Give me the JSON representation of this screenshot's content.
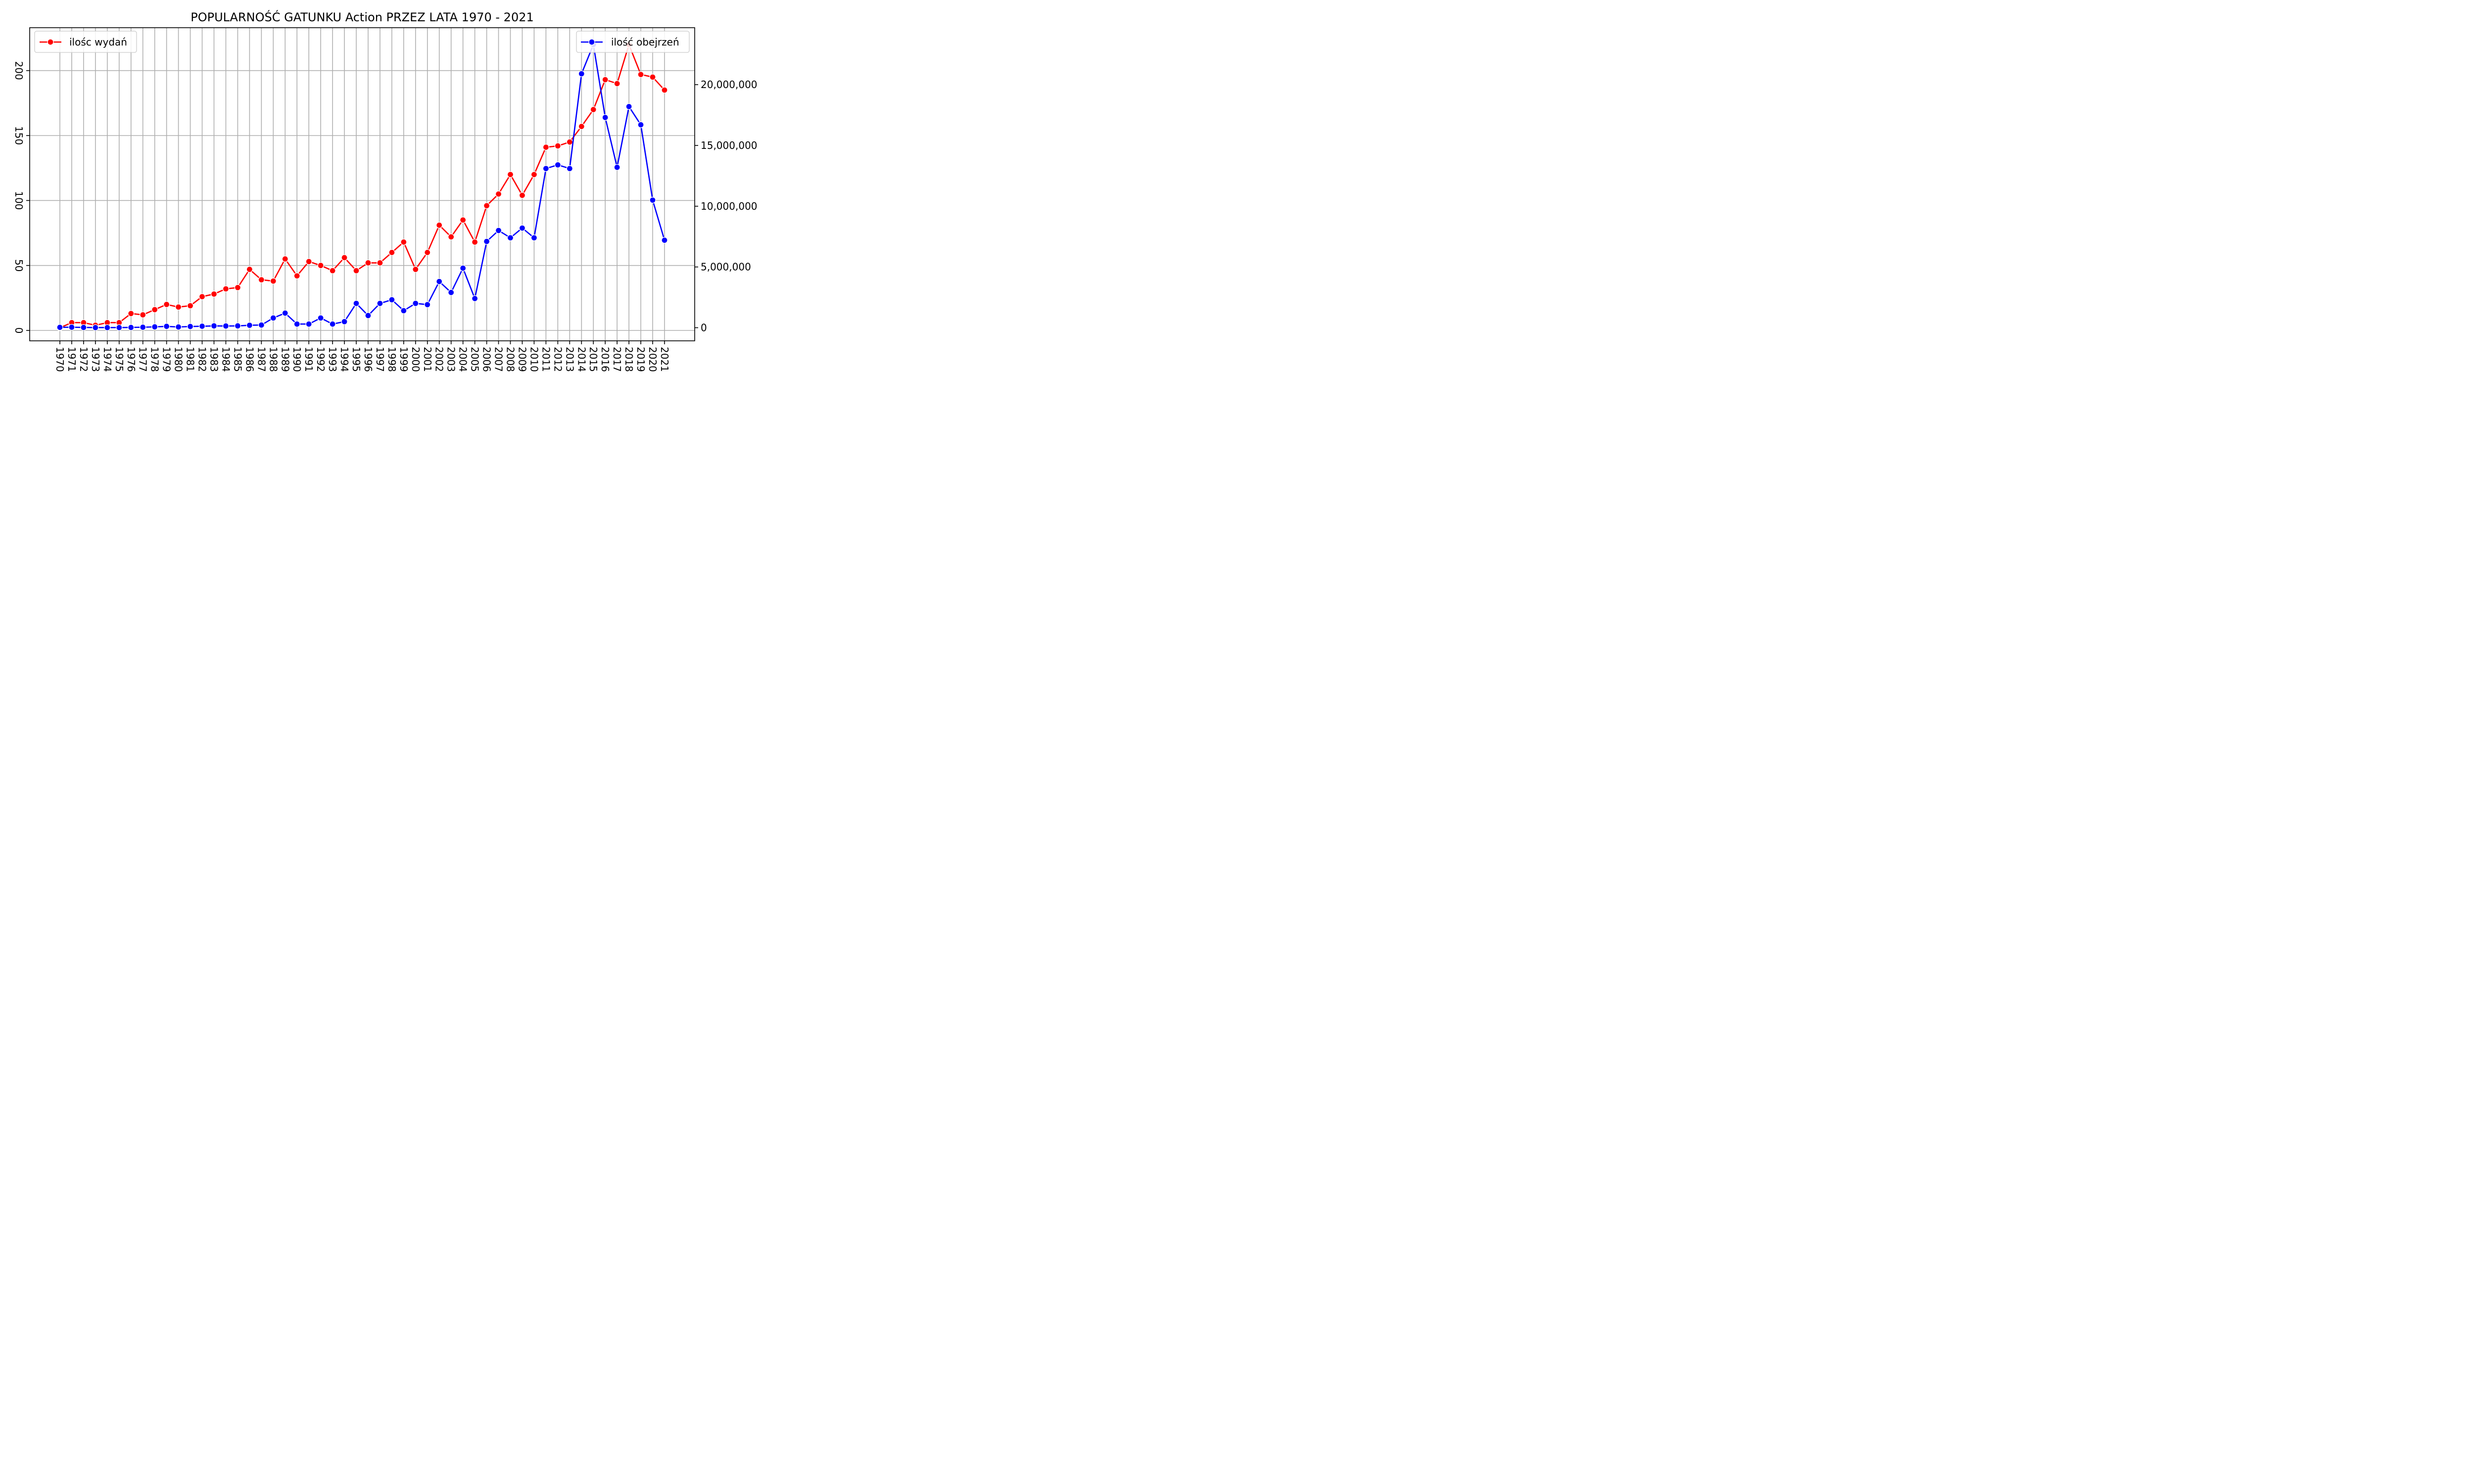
{
  "chart_data": {
    "type": "line",
    "title": "POPULARNOŚĆ GATUNKU Action PRZEZ LATA 1970 - 2021",
    "xlabel": "",
    "ylabel_left": "",
    "ylabel_right": "",
    "x": [
      1970,
      1971,
      1972,
      1973,
      1974,
      1975,
      1976,
      1977,
      1978,
      1979,
      1980,
      1981,
      1982,
      1983,
      1984,
      1985,
      1986,
      1987,
      1988,
      1989,
      1990,
      1991,
      1992,
      1993,
      1994,
      1995,
      1996,
      1997,
      1998,
      1999,
      2000,
      2001,
      2002,
      2003,
      2004,
      2005,
      2006,
      2007,
      2008,
      2009,
      2010,
      2011,
      2012,
      2013,
      2014,
      2015,
      2016,
      2017,
      2018,
      2019,
      2020,
      2021
    ],
    "left_axis": {
      "ylim": [
        -8,
        233
      ],
      "ticks": [
        0,
        50,
        100,
        150,
        200
      ],
      "tick_labels": [
        "0",
        "50",
        "100",
        "150",
        "200"
      ]
    },
    "right_axis": {
      "ylim": [
        -1080000,
        24690000
      ],
      "ticks": [
        0,
        5000000,
        10000000,
        15000000,
        20000000
      ],
      "tick_labels": [
        "0",
        "5,000,000",
        "10,000,000",
        "15,000,000",
        "20,000,000"
      ]
    },
    "grid": true,
    "series": [
      {
        "name": "ilośc wydań",
        "axis": "left",
        "color": "#ff0000",
        "legend_position": "top-left",
        "values": [
          2,
          6,
          6,
          4,
          6,
          6,
          13,
          12,
          16,
          20,
          18,
          19,
          26,
          28,
          32,
          33,
          47,
          39,
          38,
          55,
          42,
          53,
          50,
          46,
          56,
          46,
          52,
          52,
          60,
          68,
          47,
          60,
          81,
          72,
          85,
          68,
          96,
          105,
          120,
          104,
          120,
          141,
          142,
          145,
          157,
          170,
          193,
          190,
          220,
          197,
          195,
          185
        ]
      },
      {
        "name": "ilość obejrzeń",
        "axis": "right",
        "color": "#0000ff",
        "legend_position": "top-right",
        "values": [
          30000,
          40000,
          20000,
          10000,
          10000,
          10000,
          20000,
          40000,
          70000,
          110000,
          60000,
          100000,
          120000,
          150000,
          140000,
          150000,
          200000,
          220000,
          800000,
          1200000,
          300000,
          300000,
          800000,
          300000,
          500000,
          2000000,
          1000000,
          2000000,
          2300000,
          1400000,
          2000000,
          1900000,
          3800000,
          2900000,
          4900000,
          2400000,
          7100000,
          8000000,
          7400000,
          8200000,
          7400000,
          13100000,
          13400000,
          13100000,
          20900000,
          23300000,
          17300000,
          13200000,
          18200000,
          16700000,
          10500000,
          7200000
        ]
      }
    ]
  }
}
